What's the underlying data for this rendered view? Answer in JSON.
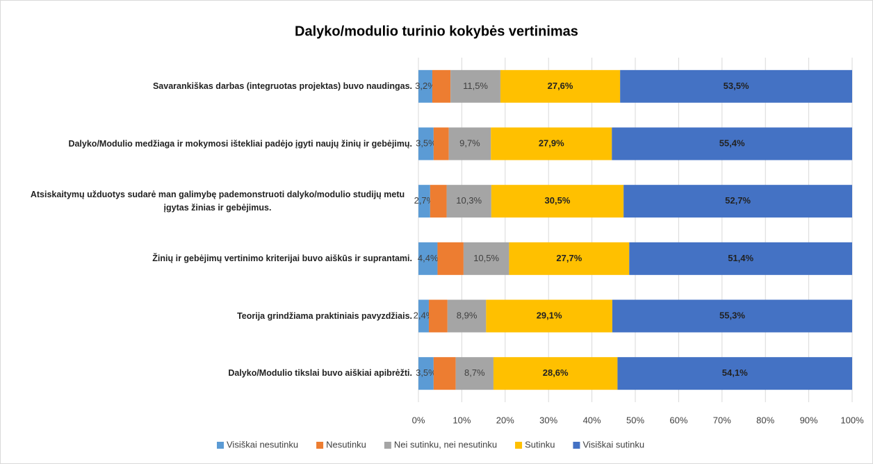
{
  "chart_data": {
    "type": "stacked_bar_horizontal",
    "title": "Dalyko/modulio turinio kokybės vertinimas",
    "categories": [
      "Savarankiškas darbas (integruotas projektas) buvo naudingas.",
      "Dalyko/Modulio medžiaga ir mokymosi ištekliai padėjo įgyti naujų žinių ir gebėjimų.",
      "Atsiskaitymų  užduotys sudarė man galimybę pademonstruoti dalyko/modulio studijų metu įgytas žinias ir gebėjimus.",
      "Žinių ir gebėjimų vertinimo kriterijai buvo aiškūs ir suprantami.",
      "Teorija grindžiama praktiniais pavyzdžiais.",
      "Dalyko/Modulio tikslai buvo aiškiai apibrėžti."
    ],
    "series": [
      {
        "name": "Visiškai nesutinku",
        "color": "#5b9bd5",
        "values": [
          3.2,
          3.5,
          2.7,
          4.4,
          2.4,
          3.5
        ],
        "value_labels": [
          "3,2%",
          "3,5%",
          "2,7%",
          "4,4%",
          "2,4%",
          "3,5%"
        ]
      },
      {
        "name": "Nesutinku",
        "color": "#ed7d31",
        "values": [
          4.2,
          3.5,
          3.8,
          6.0,
          4.3,
          5.1
        ]
      },
      {
        "name": "Nei sutinku, nei nesutinku",
        "color": "#a5a5a5",
        "values": [
          11.5,
          9.7,
          10.3,
          10.5,
          8.9,
          8.7
        ],
        "value_labels": [
          "11,5%",
          "9,7%",
          "10,3%",
          "10,5%",
          "8,9%",
          "8,7%"
        ]
      },
      {
        "name": "Sutinku",
        "color": "#ffc000",
        "values": [
          27.6,
          27.9,
          30.5,
          27.7,
          29.1,
          28.6
        ],
        "value_labels": [
          "27,6%",
          "27,9%",
          "30,5%",
          "27,7%",
          "29,1%",
          "28,6%"
        ]
      },
      {
        "name": "Visiškai sutinku",
        "color": "#4472c4",
        "values": [
          53.5,
          55.4,
          52.7,
          51.4,
          55.3,
          54.1
        ],
        "value_labels": [
          "53,5%",
          "55,4%",
          "52,7%",
          "51,4%",
          "55,3%",
          "54,1%"
        ]
      }
    ],
    "xlim": [
      0,
      100
    ],
    "xticks": [
      {
        "value": 0,
        "label": "0%"
      },
      {
        "value": 10,
        "label": "10%"
      },
      {
        "value": 20,
        "label": "20%"
      },
      {
        "value": 30,
        "label": "30%"
      },
      {
        "value": 40,
        "label": "40%"
      },
      {
        "value": 50,
        "label": "50%"
      },
      {
        "value": 60,
        "label": "60%"
      },
      {
        "value": 70,
        "label": "70%"
      },
      {
        "value": 80,
        "label": "80%"
      },
      {
        "value": 90,
        "label": "90%"
      },
      {
        "value": 100,
        "label": "100%"
      }
    ],
    "grid": true,
    "legend": "bottom"
  }
}
